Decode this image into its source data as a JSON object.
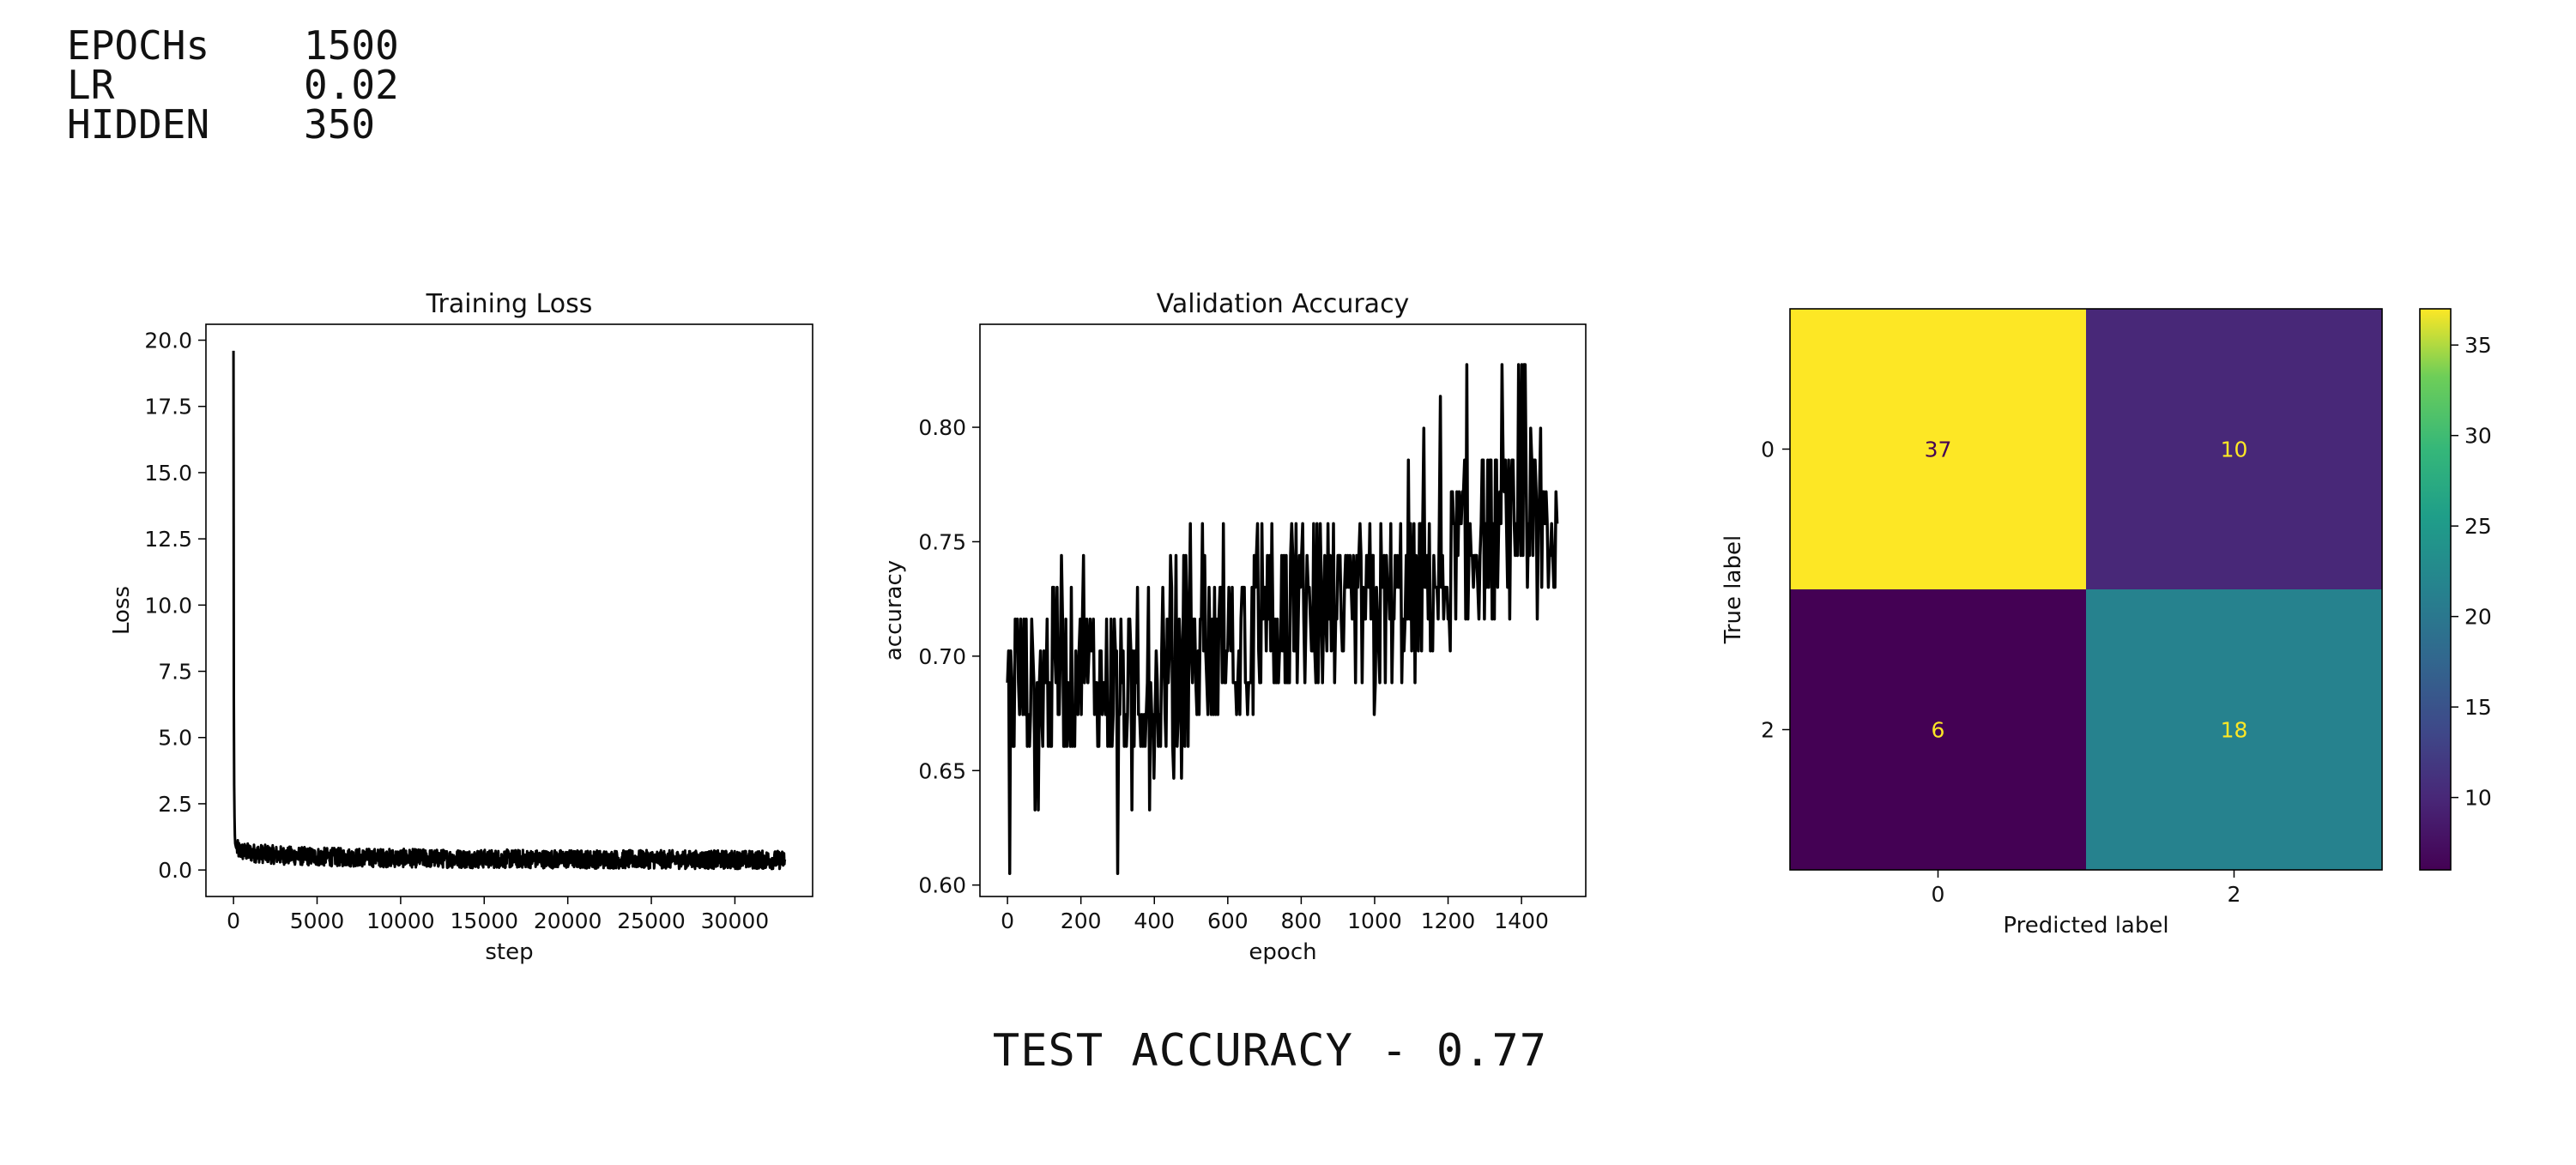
{
  "header": {
    "params": [
      {
        "key": "EPOCHs",
        "value": "1500"
      },
      {
        "key": "LR",
        "value": "0.02"
      },
      {
        "key": "HIDDEN",
        "value": "350"
      }
    ]
  },
  "footer": {
    "test_accuracy": "TEST ACCURACY - 0.77"
  },
  "chart_data": [
    {
      "type": "line",
      "title": "Training Loss",
      "xlabel": "step",
      "ylabel": "Loss",
      "xlim": [
        -1650,
        34650
      ],
      "ylim": [
        -1.0,
        20.6
      ],
      "xticks": [
        0,
        5000,
        10000,
        15000,
        20000,
        25000,
        30000
      ],
      "yticks": [
        0.0,
        2.5,
        5.0,
        7.5,
        10.0,
        12.5,
        15.0,
        17.5,
        20.0
      ],
      "ytick_labels": [
        "0.0",
        "2.5",
        "5.0",
        "7.5",
        "10.0",
        "12.5",
        "15.0",
        "17.5",
        "20.0"
      ],
      "color": "#000000",
      "series": [
        {
          "x": [
            0,
            20,
            40,
            60,
            80,
            100,
            150,
            200,
            300,
            500,
            1000,
            2000,
            3000,
            5000,
            7500,
            10000,
            12500,
            15000,
            17500,
            20000,
            22500,
            25000,
            27500,
            30000,
            33000
          ],
          "y": [
            19.6,
            6.5,
            3.2,
            2.0,
            1.3,
            1.0,
            0.85,
            0.8,
            0.75,
            0.7,
            0.65,
            0.6,
            0.55,
            0.5,
            0.47,
            0.45,
            0.43,
            0.42,
            0.42,
            0.41,
            0.4,
            0.4,
            0.39,
            0.39,
            0.38
          ],
          "noise_band": [
            0.35,
            0.35,
            0.35,
            0.35,
            0.35,
            0.35,
            0.35,
            0.35,
            0.35,
            0.35,
            0.35,
            0.35,
            0.35,
            0.35,
            0.35,
            0.35,
            0.35,
            0.35,
            0.35,
            0.35,
            0.35,
            0.35,
            0.35,
            0.35,
            0.35
          ]
        }
      ]
    },
    {
      "type": "line",
      "title": "Validation Accuracy",
      "xlabel": "epoch",
      "ylabel": "accuracy",
      "xlim": [
        -75,
        1575
      ],
      "ylim": [
        0.595,
        0.845
      ],
      "xticks": [
        0,
        200,
        400,
        600,
        800,
        1000,
        1200,
        1400
      ],
      "yticks": [
        0.6,
        0.65,
        0.7,
        0.75,
        0.8
      ],
      "ytick_labels": [
        "0.60",
        "0.65",
        "0.70",
        "0.75",
        "0.80"
      ],
      "color": "#000000",
      "series": [
        {
          "x": [
            0,
            100,
            200,
            300,
            400,
            500,
            600,
            700,
            800,
            900,
            1000,
            1100,
            1200,
            1300,
            1400,
            1499
          ],
          "y": [
            0.685,
            0.69,
            0.695,
            0.685,
            0.685,
            0.695,
            0.705,
            0.71,
            0.715,
            0.715,
            0.72,
            0.725,
            0.74,
            0.755,
            0.76,
            0.755
          ],
          "min": [
            0.605,
            0.635,
            0.645,
            0.605,
            0.635,
            0.655,
            0.675,
            0.675,
            0.69,
            0.69,
            0.665,
            0.675,
            0.705,
            0.715,
            0.72,
            0.69
          ],
          "max": [
            0.705,
            0.735,
            0.745,
            0.735,
            0.735,
            0.76,
            0.76,
            0.76,
            0.76,
            0.76,
            0.76,
            0.79,
            0.83,
            0.83,
            0.83,
            0.79
          ]
        }
      ]
    },
    {
      "type": "heatmap",
      "xlabel": "Predicted label",
      "ylabel": "True label",
      "row_labels": [
        "0",
        "2"
      ],
      "col_labels": [
        "0",
        "2"
      ],
      "values": [
        [
          37,
          10
        ],
        [
          6,
          18
        ]
      ],
      "colorbar": {
        "min": 6,
        "max": 37,
        "ticks": [
          10,
          15,
          20,
          25,
          30,
          35
        ]
      },
      "colors": {
        "37": "#fde725",
        "10": "#482878",
        "6": "#440154",
        "18": "#26828e"
      },
      "text_color_on_dark": "#fde725",
      "text_color_on_light": "#440154"
    }
  ]
}
